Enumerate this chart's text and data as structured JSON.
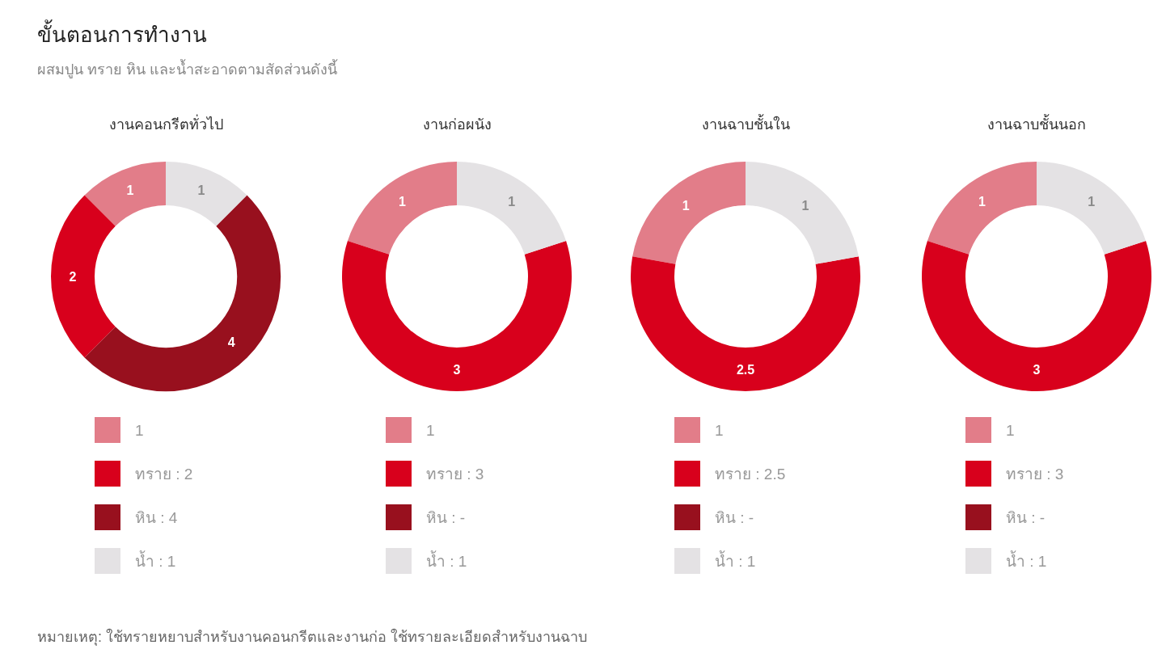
{
  "chart_data": [
    {
      "type": "other",
      "title": "ขั้นตอนการทำงาน",
      "subtitle": "ผสมปูน ทราย หิน และน้ำสะอาดตามสัดส่วนดังนี้",
      "annotations": [
        "หมายเหตุ: ใช้ทรายหยาบสำหรับงานคอนกรีตและงานก่อ ใช้ทรายละเอียดสำหรับงานฉาบ"
      ]
    },
    {
      "type": "donut",
      "title": "งานคอนกรีตทั่วไป",
      "categories": [
        null,
        "ทราย",
        "หิน",
        "น้ำ"
      ],
      "values": [
        1,
        2,
        4,
        1
      ],
      "value_labels": [
        "1",
        "2",
        "4",
        "1"
      ],
      "colors": [
        "#e27d89",
        "#d8001c",
        "#98101e",
        "#e4e2e4"
      ],
      "data_labels": true,
      "legend": "bottom"
    },
    {
      "type": "donut",
      "title": "งานก่อผนัง",
      "categories": [
        null,
        "ทราย",
        "หิน",
        "น้ำ"
      ],
      "values": [
        1,
        3,
        null,
        1
      ],
      "value_labels": [
        "1",
        "3",
        "-",
        "1"
      ],
      "colors": [
        "#e27d89",
        "#d8001c",
        "#98101e",
        "#e4e2e4"
      ],
      "data_labels": true,
      "legend": "bottom"
    },
    {
      "type": "donut",
      "title": "งานฉาบชั้นใน",
      "categories": [
        null,
        "ทราย",
        "หิน",
        "น้ำ"
      ],
      "values": [
        1,
        2.5,
        null,
        1
      ],
      "value_labels": [
        "1",
        "2.5",
        "-",
        "1"
      ],
      "colors": [
        "#e27d89",
        "#d8001c",
        "#98101e",
        "#e4e2e4"
      ],
      "data_labels": true,
      "legend": "bottom"
    },
    {
      "type": "donut",
      "title": "งานฉาบชั้นนอก",
      "categories": [
        null,
        "ทราย",
        "หิน",
        "น้ำ"
      ],
      "values": [
        1,
        3,
        null,
        1
      ],
      "value_labels": [
        "1",
        "3",
        "-",
        "1"
      ],
      "colors": [
        "#e27d89",
        "#d8001c",
        "#98101e",
        "#e4e2e4"
      ],
      "data_labels": true,
      "legend": "bottom"
    }
  ]
}
